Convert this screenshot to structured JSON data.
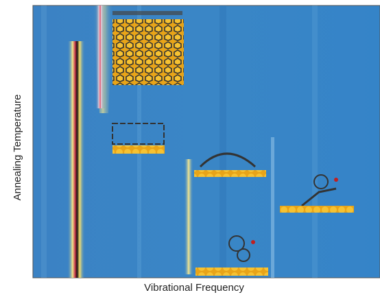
{
  "figure": {
    "x_label": "Vibrational Frequency",
    "y_label": "Annealing Temperature"
  }
}
